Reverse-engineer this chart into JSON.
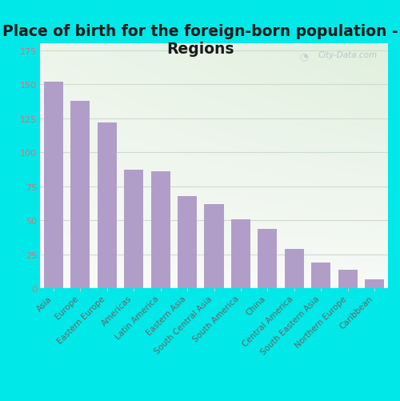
{
  "title": "Place of birth for the foreign-born population -\nRegions",
  "categories": [
    "Asia",
    "Europe",
    "Eastern Europe",
    "Americas",
    "Latin America",
    "Eastern Asia",
    "South Central Asia",
    "South America",
    "China",
    "Central America",
    "South Eastern Asia",
    "Northern Europe",
    "Caribbean"
  ],
  "values": [
    152,
    138,
    122,
    87,
    86,
    68,
    62,
    51,
    44,
    29,
    19,
    14,
    7
  ],
  "bar_color": "#b09ec8",
  "background_color": "#00e8e8",
  "yticks": [
    0,
    25,
    50,
    75,
    100,
    125,
    150,
    175
  ],
  "ylim": [
    0,
    180
  ],
  "title_fontsize": 13.5,
  "tick_label_fontsize": 7.5,
  "ytick_label_fontsize": 8,
  "watermark_text": "City-Data.com",
  "grid_color": "#ccddcc",
  "plot_bg_color": "#eef4ee",
  "plot_bg_color2": "#f8fbf5"
}
